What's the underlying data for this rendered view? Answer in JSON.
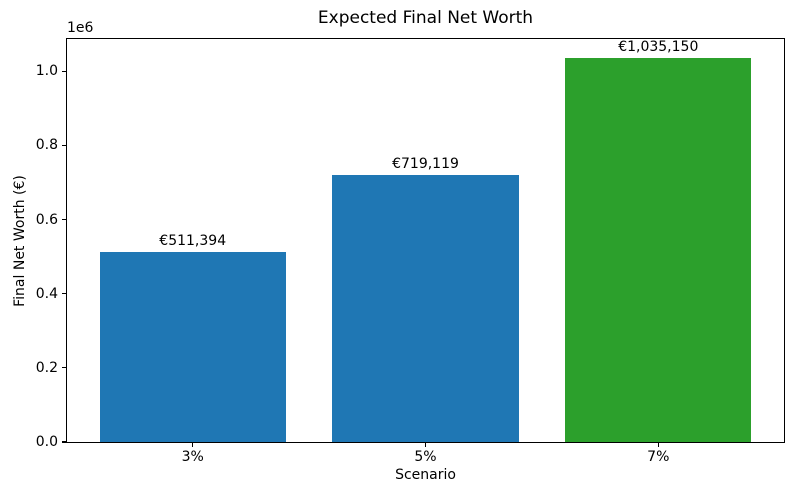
{
  "chart_data": {
    "type": "bar",
    "title": "Expected Final Net Worth",
    "xlabel": "Scenario",
    "ylabel": "Final Net Worth (€)",
    "categories": [
      "3%",
      "5%",
      "7%"
    ],
    "values": [
      511394,
      719119,
      1035150
    ],
    "value_labels": [
      "€511,394",
      "€719,119",
      "€1,035,150"
    ],
    "bar_colors": [
      "#1f77b4",
      "#1f77b4",
      "#2ca02c"
    ],
    "y_axis": {
      "offset_label": "1e6",
      "ticks": [
        {
          "value": 0,
          "label": "0.0"
        },
        {
          "value": 200000,
          "label": "0.2"
        },
        {
          "value": 400000,
          "label": "0.4"
        },
        {
          "value": 600000,
          "label": "0.6"
        },
        {
          "value": 800000,
          "label": "0.8"
        },
        {
          "value": 1000000,
          "label": "1.0"
        }
      ]
    },
    "ylim": [
      0,
      1086908
    ],
    "xlim": [
      -0.54,
      2.54
    ],
    "bar_width": 0.8,
    "grid": false,
    "legend": "none",
    "text_color": "#000000",
    "spine_color": "#000000",
    "background_color": "#ffffff"
  }
}
